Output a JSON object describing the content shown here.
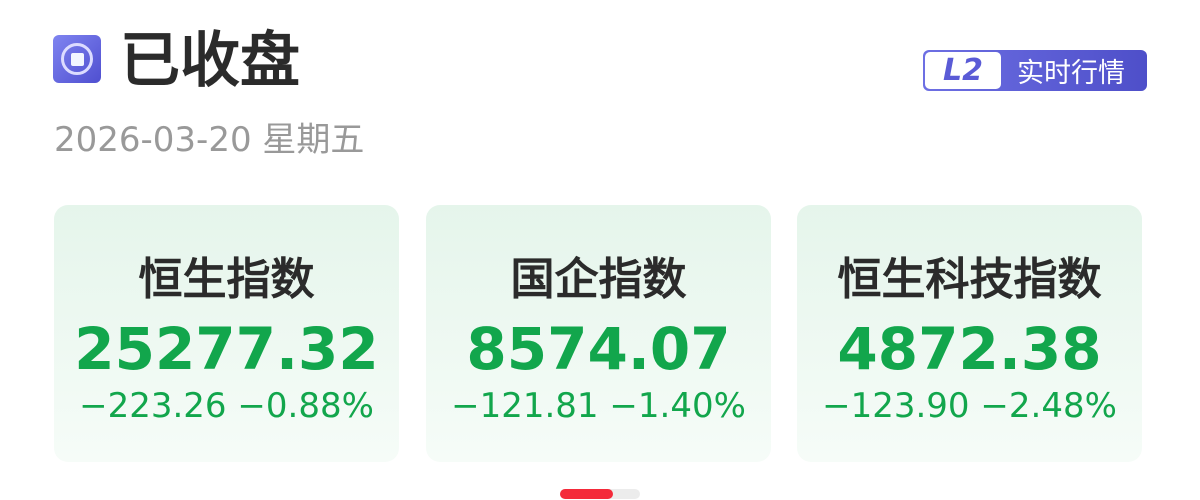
{
  "header": {
    "status_icon": "stop-circle-icon",
    "title": "已收盘",
    "date": "2026-03-20 星期五",
    "badge": {
      "level": "L2",
      "label": "实时行情"
    }
  },
  "colors": {
    "down": "#12a64c",
    "accent": "#5a5bd6",
    "pager_active": "#f42a3a"
  },
  "indices": [
    {
      "name": "恒生指数",
      "value": "25277.32",
      "change": "−223.26",
      "change_pct": "−0.88%"
    },
    {
      "name": "国企指数",
      "value": "8574.07",
      "change": "−121.81",
      "change_pct": "−1.40%"
    },
    {
      "name": "恒生科技指数",
      "value": "4872.38",
      "change": "−123.90",
      "change_pct": "−2.48%"
    }
  ],
  "pager": {
    "pages": 2,
    "current": 1
  }
}
